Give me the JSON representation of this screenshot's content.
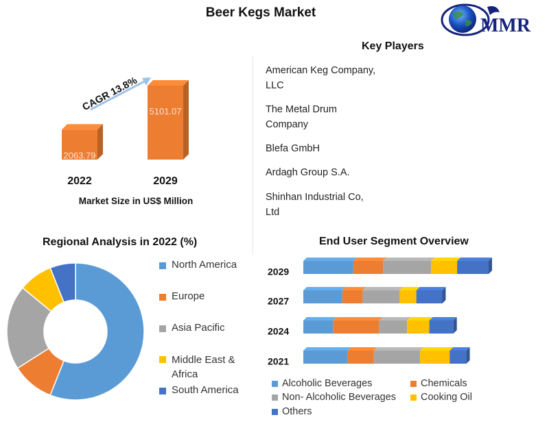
{
  "page": {
    "title": "Beer Kegs Market"
  },
  "logo": {
    "text": "MMR"
  },
  "market_size": {
    "cagr_label": "CAGR 13.8%",
    "caption": "Market Size in US$ Million"
  },
  "key_players": {
    "title": "Key Players",
    "items": [
      "American Keg Company, LLC",
      "The Metal Drum Company",
      "Blefa GmbH",
      "Ardagh Group S.A.",
      "Shinhan Industrial Co, Ltd"
    ]
  },
  "colors": {
    "bar_orange": "#ED7D31",
    "blue": "#5B9BD5",
    "orange": "#ED7D31",
    "gray": "#A5A5A5",
    "yellow": "#FFC000",
    "dark_blue": "#4472C4"
  },
  "chart_data": [
    {
      "type": "bar",
      "categories": [
        "2022",
        "2029"
      ],
      "values": [
        2063.79,
        5101.07
      ],
      "data_labels": [
        "2063.79",
        "5101.07"
      ],
      "xlabel": "Market Size in US$ Million",
      "annotation": "CAGR 13.8%"
    },
    {
      "type": "pie",
      "title": "Regional Analysis in 2022 (%)",
      "donut": true,
      "categories": [
        "North America",
        "Europe",
        "Asia Pacific",
        "Middle East & Africa",
        "South America"
      ],
      "values": [
        56,
        10,
        20,
        8,
        6
      ],
      "colors": [
        "#5B9BD5",
        "#ED7D31",
        "#A5A5A5",
        "#FFC000",
        "#4472C4"
      ],
      "legend_position": "right"
    },
    {
      "type": "bar",
      "orientation": "horizontal",
      "stacked": true,
      "title": "End User Segment Overview",
      "categories": [
        "2029",
        "2027",
        "2024",
        "2021"
      ],
      "series": [
        {
          "name": "Alcoholic Beverages",
          "values": [
            27,
            21,
            16,
            24
          ]
        },
        {
          "name": "Chemicals",
          "values": [
            16,
            11,
            25,
            14
          ]
        },
        {
          "name": "Non- Alcoholic Beverages",
          "values": [
            26,
            20,
            15,
            25
          ]
        },
        {
          "name": "Cooking Oil",
          "values": [
            14,
            9,
            12,
            16
          ]
        },
        {
          "name": "Others",
          "values": [
            17,
            14,
            13,
            9
          ]
        }
      ],
      "colors": [
        "#5B9BD5",
        "#ED7D31",
        "#A5A5A5",
        "#FFC000",
        "#4472C4"
      ],
      "legend_position": "bottom"
    }
  ]
}
